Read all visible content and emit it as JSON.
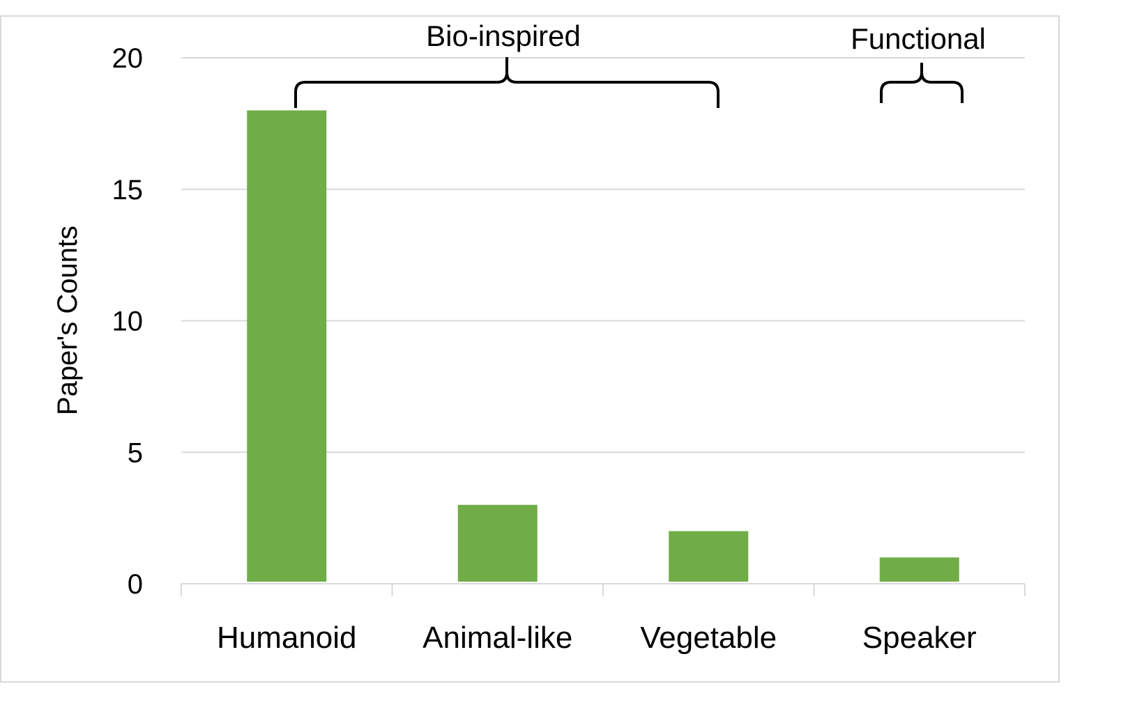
{
  "chart_data": {
    "type": "bar",
    "categories": [
      "Humanoid",
      "Animal-like",
      "Vegetable",
      "Speaker"
    ],
    "values": [
      18,
      3,
      2,
      1
    ],
    "ylabel": "Paper's Counts",
    "xlabel": "",
    "ylim": [
      0,
      20
    ],
    "yticks": [
      0,
      5,
      10,
      15,
      20
    ],
    "grid": true,
    "bar_color": "#70ad47",
    "groups": [
      {
        "label": "Bio-inspired",
        "categories": [
          "Humanoid",
          "Animal-like",
          "Vegetable"
        ]
      },
      {
        "label": "Functional",
        "categories": [
          "Speaker"
        ]
      }
    ]
  }
}
